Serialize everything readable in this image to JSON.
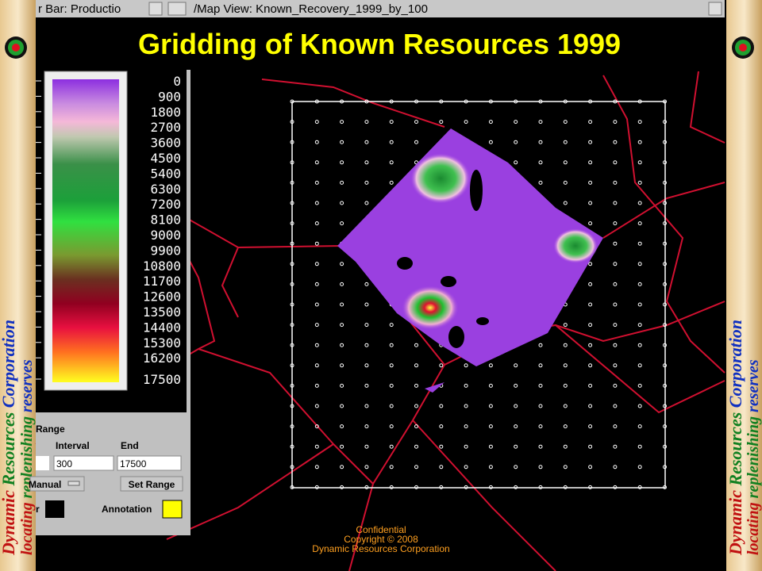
{
  "window_bar": {
    "left_title": "r Bar: Productio",
    "right_title": "/Map View: Known_Recovery_1999_by_100"
  },
  "header": {
    "title": "Gridding of Known Resources 1999"
  },
  "legend": {
    "labels": [
      "0",
      "900",
      "1800",
      "2700",
      "3600",
      "4500",
      "5400",
      "6300",
      "7200",
      "8100",
      "9000",
      "9900",
      "10800",
      "11700",
      "12600",
      "13500",
      "14400",
      "15300",
      "16200",
      "17500"
    ]
  },
  "range_panel": {
    "heading": "Range",
    "interval_label": "Interval",
    "end_label": "End",
    "interval_value": "300",
    "end_value": "17500",
    "mode": "Manual",
    "set_range": "Set Range",
    "color_label": "r",
    "annotation": "Annotation"
  },
  "footer": {
    "line1": "Confidential",
    "line2": "Copyright © 2008",
    "line3": "Dynamic Resources Corporation"
  },
  "banner": {
    "company": [
      "Dynamic",
      "Resources",
      "Corporation"
    ],
    "slogan": [
      "locating",
      "replenishing",
      "reserves"
    ]
  }
}
